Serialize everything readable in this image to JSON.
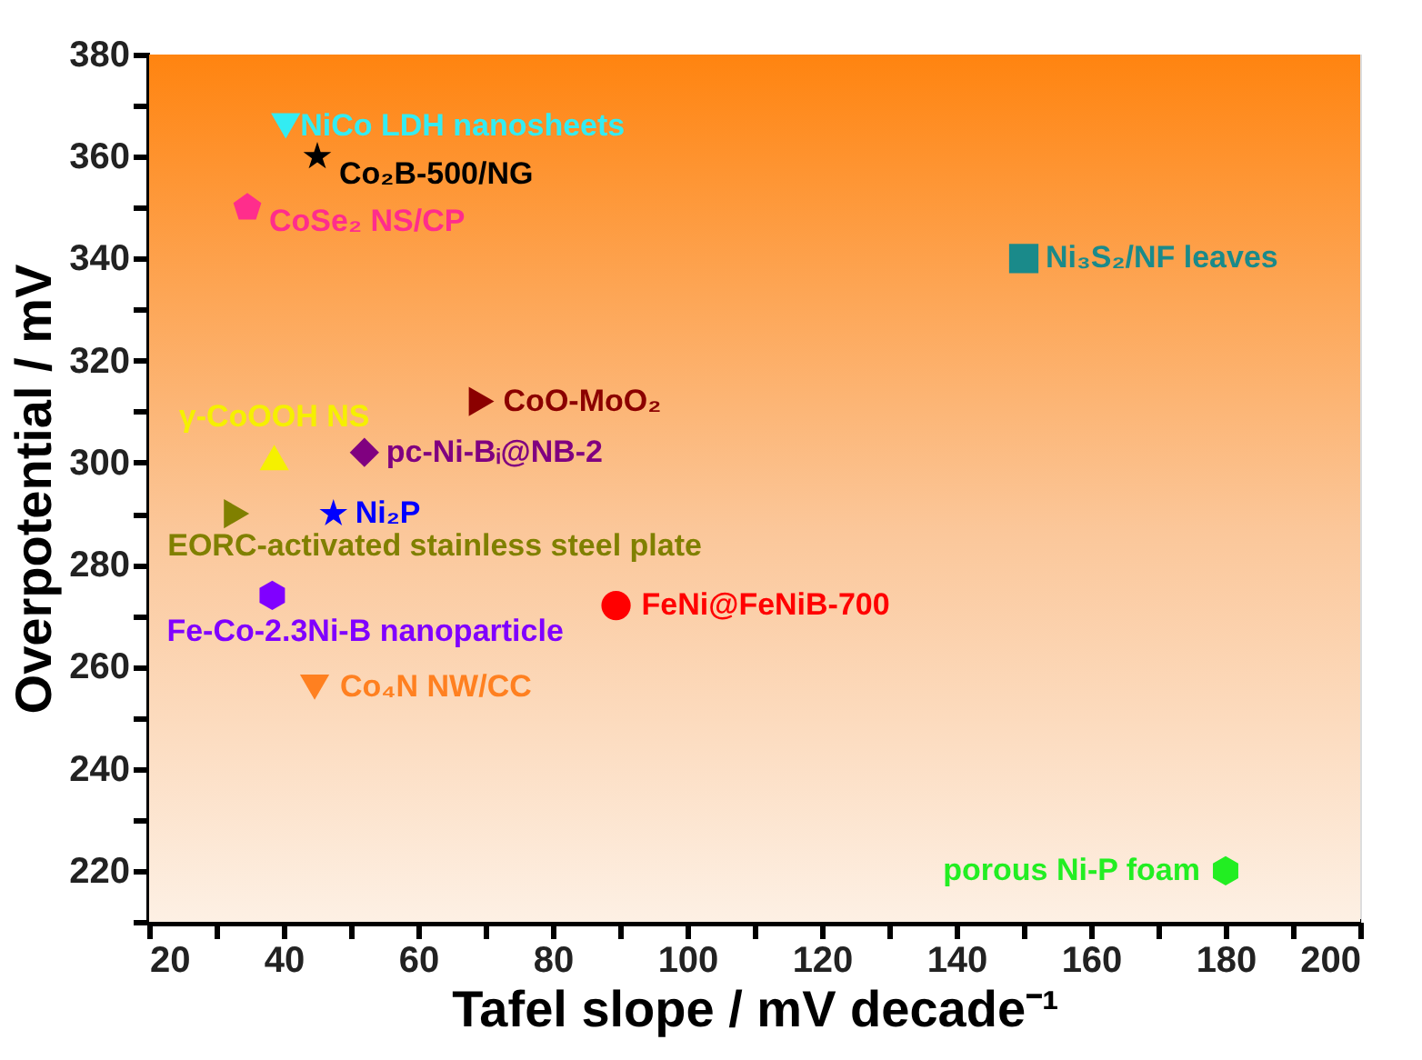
{
  "chart_data": {
    "type": "scatter",
    "xlabel": "Tafel slope / mV decade⁻¹",
    "ylabel": "Overpotential / mV",
    "xlim": [
      20,
      200
    ],
    "ylim": [
      210,
      380
    ],
    "xticks": [
      20,
      {
        "value": 30,
        "label": null
      },
      40,
      {
        "value": 50,
        "label": null
      },
      60,
      {
        "value": 70,
        "label": null
      },
      80,
      {
        "value": 90,
        "label": null
      },
      100,
      {
        "value": 110,
        "label": null
      },
      120,
      {
        "value": 130,
        "label": null
      },
      140,
      {
        "value": 150,
        "label": null
      },
      160,
      {
        "value": 170,
        "label": null
      },
      180,
      {
        "value": 190,
        "label": null
      },
      200
    ],
    "yticks": [
      {
        "value": 210,
        "label": null
      },
      220,
      {
        "value": 230,
        "label": null
      },
      240,
      {
        "value": 250,
        "label": null
      },
      260,
      {
        "value": 270,
        "label": null
      },
      280,
      {
        "value": 290,
        "label": null
      },
      300,
      {
        "value": 310,
        "label": null
      },
      320,
      {
        "value": 330,
        "label": null
      },
      340,
      {
        "value": 350,
        "label": null
      },
      360,
      {
        "value": 370,
        "label": null
      },
      380
    ],
    "series": [
      {
        "name": "NiCo LDH nanosheets",
        "color": "#33ecf2",
        "marker": "triangle-down",
        "x": [
          40.3
        ],
        "values": [
          366
        ]
      },
      {
        "name": "Co₂B-500/NG",
        "color": "#000000",
        "marker": "star",
        "x": [
          45
        ],
        "values": [
          360
        ]
      },
      {
        "name": "CoSe₂ NS/CP",
        "color": "#ff2d8c",
        "x": [
          34.6
        ],
        "values": [
          350
        ]
      },
      {
        "name": "Ni₃S₂/NF leaves",
        "color": "#1a8a8a",
        "marker": "square",
        "x": [
          150
        ],
        "values": [
          340
        ]
      },
      {
        "name": "CoO-MoO₂",
        "color": "#8b0000",
        "marker": "triangle-right",
        "x": [
          69.4
        ],
        "values": [
          312
        ]
      },
      {
        "name": "γ-CoOOH NS",
        "color": "#f5f000",
        "marker": "triangle",
        "x": [
          38.6
        ],
        "values": [
          301
        ]
      },
      {
        "name": "pc-Ni-Bᵢ@NB-2",
        "color": "#800080",
        "marker": "diamond",
        "x": [
          52
        ],
        "values": [
          302
        ]
      },
      {
        "name": "EORC-activated stainless steel plate",
        "color": "#808000",
        "marker": "triangle-right",
        "x": [
          33
        ],
        "values": [
          290
        ]
      },
      {
        "name": "Ni₂P",
        "color": "#0000ff",
        "marker": "star",
        "x": [
          47.4
        ],
        "values": [
          290
        ]
      },
      {
        "name": "FeNi@FeNiB-700",
        "color": "#ff0000",
        "marker": "circle",
        "x": [
          89.4
        ],
        "values": [
          272
        ]
      },
      {
        "name": "Fe-Co-2.3Ni-B nanoparticle",
        "color": "#8000ff",
        "x": [
          38.3
        ],
        "values": [
          274
        ]
      },
      {
        "name": "Co₄N NW/CC",
        "color": "#ff8020",
        "marker": "triangle-down",
        "x": [
          44.6
        ],
        "values": [
          256
        ]
      },
      {
        "name": "porous Ni-P foam",
        "color": "#22ee22",
        "x": [
          180
        ],
        "values": [
          220
        ]
      }
    ]
  }
}
